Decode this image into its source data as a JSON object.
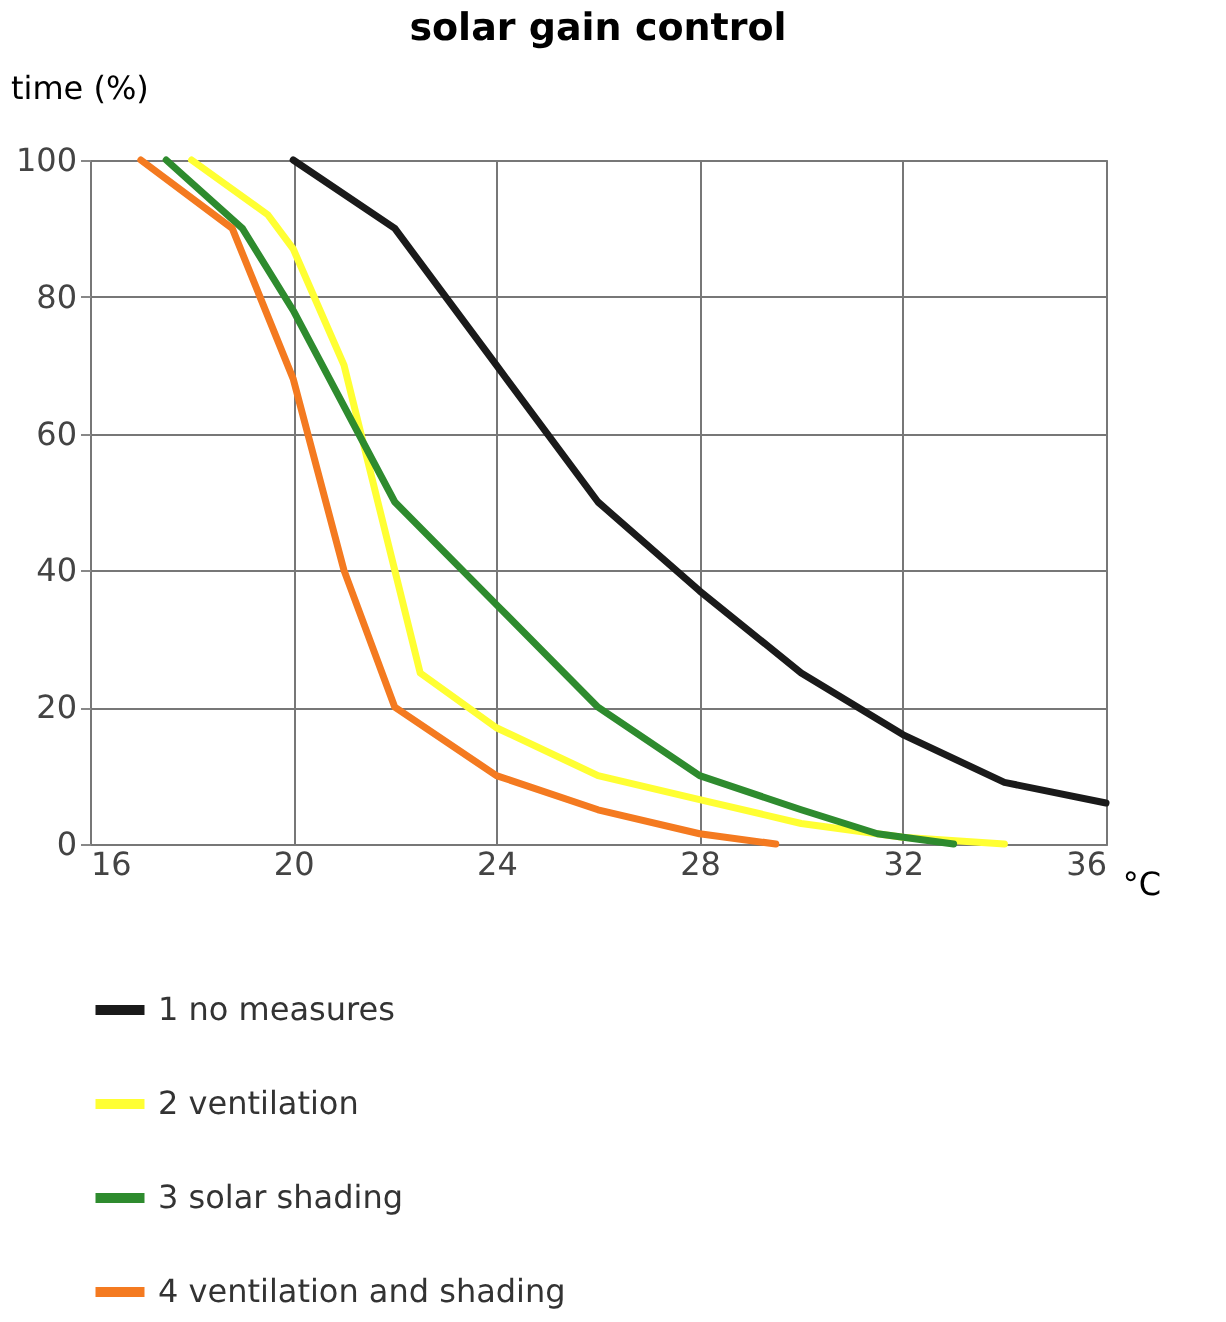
{
  "chart_data": {
    "type": "line",
    "title": "solar gain control",
    "xlabel": "°C",
    "ylabel": "time (%)",
    "xlim": [
      16,
      36
    ],
    "xticks": [
      16,
      20,
      24,
      28,
      32,
      36
    ],
    "ylim": [
      0,
      100
    ],
    "yticks": [
      0,
      20,
      40,
      60,
      80,
      100
    ],
    "grid": true,
    "legend": "bottom",
    "marker": "none",
    "line_style": "solid",
    "series": [
      {
        "name": "1 no measures",
        "color": "#1a1a1a",
        "x": [
          20,
          22,
          24,
          26,
          28,
          30,
          32,
          34,
          36
        ],
        "values": [
          100,
          90,
          70,
          50,
          37,
          25,
          16,
          9,
          6
        ]
      },
      {
        "name": "2 ventilation",
        "color": "#ffff33",
        "x": [
          18,
          19.5,
          20,
          21,
          22,
          22.5,
          24,
          26,
          28,
          30,
          32,
          34
        ],
        "values": [
          100,
          92,
          87,
          70,
          40,
          25,
          17,
          10,
          6.5,
          3,
          1,
          0
        ]
      },
      {
        "name": "3 solar shading",
        "color": "#2e8b2e",
        "x": [
          17.5,
          19,
          20,
          22,
          24,
          26,
          28,
          30,
          31.5,
          33
        ],
        "values": [
          100,
          90,
          78,
          50,
          35,
          20,
          10,
          5,
          1.5,
          0
        ]
      },
      {
        "name": "4 ventilation and shading",
        "color": "#f47a20",
        "x": [
          17,
          18.8,
          20,
          21,
          22,
          24,
          26,
          28,
          29.5
        ],
        "values": [
          100,
          90,
          68,
          40,
          20,
          10,
          5,
          1.5,
          0
        ]
      }
    ]
  }
}
